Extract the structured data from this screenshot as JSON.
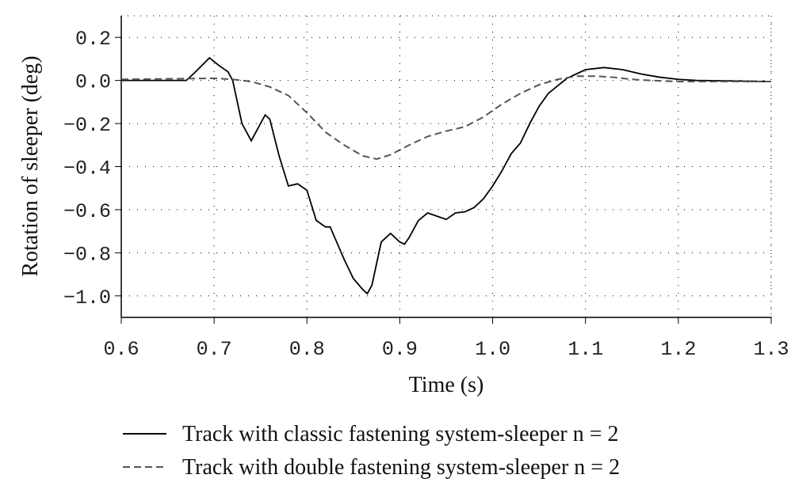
{
  "chart_data": {
    "type": "line",
    "xlabel": "Time (s)",
    "ylabel": "Rotation of sleeper (deg)",
    "xlim": [
      0.6,
      1.3
    ],
    "ylim": [
      -1.1,
      0.3
    ],
    "xticks": [
      0.6,
      0.7,
      0.8,
      0.9,
      {
        "value": 1.0,
        "label": "1.0"
      },
      1.1,
      1.2,
      1.3
    ],
    "yticks": [
      0.2,
      {
        "value": 0,
        "label": "0.0"
      },
      {
        "value": -0.2,
        "label": "−0.2"
      },
      {
        "value": -0.4,
        "label": "−0.4"
      },
      {
        "value": -0.6,
        "label": "−0.6"
      },
      {
        "value": -0.8,
        "label": "−0.8"
      },
      {
        "value": -1.0,
        "label": "−1.0"
      }
    ],
    "grid": true,
    "series": [
      {
        "name": "Track with classic fastening system-sleeper n = 2",
        "color": "#000000",
        "dash": "solid",
        "x": [
          0.6,
          0.67,
          0.68,
          0.695,
          0.705,
          0.715,
          0.72,
          0.73,
          0.74,
          0.75,
          0.755,
          0.76,
          0.77,
          0.78,
          0.79,
          0.8,
          0.81,
          0.82,
          0.825,
          0.83,
          0.84,
          0.85,
          0.86,
          0.865,
          0.87,
          0.88,
          0.89,
          0.9,
          0.905,
          0.91,
          0.92,
          0.93,
          0.94,
          0.95,
          0.96,
          0.97,
          0.98,
          0.99,
          1.0,
          1.01,
          1.02,
          1.03,
          1.04,
          1.05,
          1.06,
          1.08,
          1.1,
          1.12,
          1.14,
          1.16,
          1.18,
          1.2,
          1.22,
          1.3
        ],
        "values": [
          0,
          0,
          0.04,
          0.105,
          0.07,
          0.04,
          0.0,
          -0.2,
          -0.28,
          -0.2,
          -0.16,
          -0.18,
          -0.35,
          -0.49,
          -0.48,
          -0.51,
          -0.65,
          -0.68,
          -0.68,
          -0.73,
          -0.83,
          -0.92,
          -0.97,
          -0.99,
          -0.95,
          -0.75,
          -0.71,
          -0.75,
          -0.76,
          -0.73,
          -0.65,
          -0.615,
          -0.63,
          -0.645,
          -0.615,
          -0.61,
          -0.59,
          -0.55,
          -0.49,
          -0.42,
          -0.34,
          -0.29,
          -0.2,
          -0.12,
          -0.06,
          0.01,
          0.05,
          0.06,
          0.05,
          0.03,
          0.015,
          0.005,
          0.0,
          -0.005
        ]
      },
      {
        "name": "Track with double fastening system-sleeper n = 2",
        "color": "#555555",
        "dash": "dashed",
        "x": [
          0.6,
          0.7,
          0.72,
          0.74,
          0.76,
          0.78,
          0.8,
          0.82,
          0.84,
          0.86,
          0.875,
          0.89,
          0.91,
          0.93,
          0.95,
          0.97,
          0.99,
          1.01,
          1.03,
          1.05,
          1.07,
          1.09,
          1.11,
          1.13,
          1.15,
          1.17,
          1.2,
          1.3
        ],
        "values": [
          0.005,
          0.01,
          0.005,
          -0.005,
          -0.03,
          -0.07,
          -0.15,
          -0.24,
          -0.3,
          -0.35,
          -0.365,
          -0.345,
          -0.3,
          -0.26,
          -0.235,
          -0.215,
          -0.17,
          -0.11,
          -0.06,
          -0.02,
          0.005,
          0.02,
          0.02,
          0.015,
          0.005,
          0.0,
          -0.005,
          -0.005
        ]
      }
    ]
  }
}
